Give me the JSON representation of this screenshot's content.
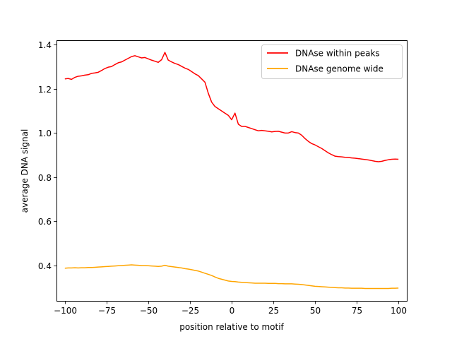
{
  "chart_data": {
    "type": "line",
    "title": "",
    "xlabel": "position relative to motif",
    "ylabel": "average DNA signal",
    "xlim": [
      -105,
      105
    ],
    "ylim": [
      0.24,
      1.42
    ],
    "xticks": [
      -100,
      -75,
      -50,
      -25,
      0,
      25,
      50,
      75,
      100
    ],
    "xtick_labels": [
      "−100",
      "−75",
      "−50",
      "−25",
      "0",
      "25",
      "50",
      "75",
      "100"
    ],
    "yticks": [
      0.4,
      0.6,
      0.8,
      1.0,
      1.2,
      1.4
    ],
    "ytick_labels": [
      "0.4",
      "0.6",
      "0.8",
      "1.0",
      "1.2",
      "1.4"
    ],
    "grid": false,
    "legend_position": "top-right",
    "series": [
      {
        "name": "DNAse within peaks",
        "color": "#ff0000",
        "x": [
          -100,
          -98,
          -96,
          -94,
          -92,
          -90,
          -88,
          -86,
          -84,
          -82,
          -80,
          -78,
          -76,
          -74,
          -72,
          -70,
          -68,
          -66,
          -64,
          -62,
          -60,
          -58,
          -56,
          -54,
          -52,
          -50,
          -48,
          -46,
          -44,
          -42,
          -40,
          -38,
          -36,
          -34,
          -32,
          -30,
          -28,
          -26,
          -24,
          -22,
          -20,
          -18,
          -16,
          -14,
          -12,
          -10,
          -8,
          -6,
          -4,
          -2,
          0,
          2,
          4,
          6,
          8,
          10,
          12,
          14,
          16,
          18,
          20,
          22,
          24,
          26,
          28,
          30,
          32,
          34,
          36,
          38,
          40,
          42,
          44,
          46,
          48,
          50,
          52,
          54,
          56,
          58,
          60,
          62,
          64,
          66,
          68,
          70,
          72,
          74,
          76,
          78,
          80,
          82,
          84,
          86,
          88,
          90,
          92,
          94,
          96,
          98,
          100
        ],
        "values": [
          1.245,
          1.247,
          1.243,
          1.252,
          1.257,
          1.259,
          1.262,
          1.264,
          1.27,
          1.272,
          1.275,
          1.283,
          1.292,
          1.298,
          1.301,
          1.31,
          1.318,
          1.322,
          1.33,
          1.338,
          1.346,
          1.35,
          1.345,
          1.34,
          1.342,
          1.336,
          1.33,
          1.325,
          1.32,
          1.332,
          1.365,
          1.33,
          1.322,
          1.315,
          1.31,
          1.302,
          1.294,
          1.288,
          1.278,
          1.268,
          1.26,
          1.245,
          1.23,
          1.18,
          1.14,
          1.12,
          1.11,
          1.1,
          1.09,
          1.08,
          1.06,
          1.09,
          1.04,
          1.03,
          1.03,
          1.025,
          1.02,
          1.015,
          1.01,
          1.012,
          1.01,
          1.008,
          1.005,
          1.007,
          1.008,
          1.004,
          1.0,
          1.0,
          1.006,
          1.002,
          1.0,
          0.99,
          0.975,
          0.962,
          0.952,
          0.946,
          0.938,
          0.93,
          0.92,
          0.91,
          0.902,
          0.895,
          0.893,
          0.892,
          0.89,
          0.889,
          0.887,
          0.886,
          0.884,
          0.882,
          0.88,
          0.878,
          0.875,
          0.872,
          0.87,
          0.872,
          0.876,
          0.879,
          0.881,
          0.882,
          0.881
        ]
      },
      {
        "name": "DNAse genome wide",
        "color": "#ffa500",
        "x": [
          -100,
          -98,
          -96,
          -94,
          -92,
          -90,
          -88,
          -86,
          -84,
          -82,
          -80,
          -78,
          -76,
          -74,
          -72,
          -70,
          -68,
          -66,
          -64,
          -62,
          -60,
          -58,
          -56,
          -54,
          -52,
          -50,
          -48,
          -46,
          -44,
          -42,
          -40,
          -38,
          -36,
          -34,
          -32,
          -30,
          -28,
          -26,
          -24,
          -22,
          -20,
          -18,
          -16,
          -14,
          -12,
          -10,
          -8,
          -6,
          -4,
          -2,
          0,
          2,
          4,
          6,
          8,
          10,
          12,
          14,
          16,
          18,
          20,
          22,
          24,
          26,
          28,
          30,
          32,
          34,
          36,
          38,
          40,
          42,
          44,
          46,
          48,
          50,
          52,
          54,
          56,
          58,
          60,
          62,
          64,
          66,
          68,
          70,
          72,
          74,
          76,
          78,
          80,
          82,
          84,
          86,
          88,
          90,
          92,
          94,
          96,
          98,
          100
        ],
        "values": [
          0.388,
          0.389,
          0.389,
          0.39,
          0.389,
          0.39,
          0.39,
          0.391,
          0.391,
          0.392,
          0.393,
          0.394,
          0.395,
          0.396,
          0.397,
          0.398,
          0.399,
          0.4,
          0.401,
          0.402,
          0.403,
          0.402,
          0.401,
          0.4,
          0.4,
          0.399,
          0.398,
          0.397,
          0.396,
          0.397,
          0.401,
          0.397,
          0.395,
          0.393,
          0.391,
          0.389,
          0.386,
          0.384,
          0.381,
          0.378,
          0.375,
          0.37,
          0.365,
          0.36,
          0.355,
          0.348,
          0.342,
          0.338,
          0.334,
          0.33,
          0.328,
          0.327,
          0.325,
          0.324,
          0.323,
          0.322,
          0.321,
          0.32,
          0.32,
          0.32,
          0.32,
          0.319,
          0.319,
          0.319,
          0.318,
          0.318,
          0.317,
          0.317,
          0.317,
          0.316,
          0.315,
          0.314,
          0.312,
          0.31,
          0.308,
          0.306,
          0.305,
          0.304,
          0.303,
          0.302,
          0.301,
          0.3,
          0.299,
          0.299,
          0.298,
          0.298,
          0.297,
          0.297,
          0.297,
          0.297,
          0.296,
          0.296,
          0.296,
          0.296,
          0.296,
          0.296,
          0.296,
          0.296,
          0.297,
          0.297,
          0.298
        ]
      }
    ]
  }
}
